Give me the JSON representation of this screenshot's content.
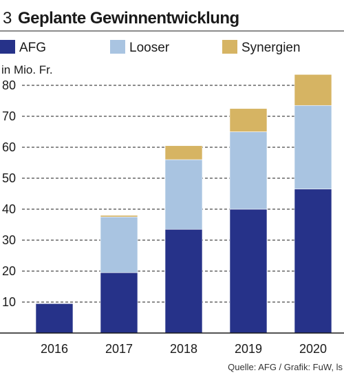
{
  "figure_number": "3",
  "title": "Geplante Gewinnentwicklung",
  "unit_label": "in Mio. Fr.",
  "source": "Quelle: AFG / Grafik: FuW, ls",
  "colors": {
    "AFG": "#263289",
    "Looser": "#a9c4e1",
    "Synergien": "#d6b463",
    "grid": "#1a1a1a"
  },
  "chart_data": {
    "type": "bar",
    "stacked": true,
    "categories": [
      "2016",
      "2017",
      "2018",
      "2019",
      "2020"
    ],
    "series": [
      {
        "name": "AFG",
        "values": [
          9.5,
          19.5,
          33.5,
          40,
          46.5
        ]
      },
      {
        "name": "Looser",
        "values": [
          0,
          18,
          22.5,
          25,
          27
        ]
      },
      {
        "name": "Synergien",
        "values": [
          0,
          0.5,
          4.5,
          7.5,
          10
        ]
      }
    ],
    "ylabel": "in Mio. Fr.",
    "ylim": [
      0,
      85
    ],
    "yticks": [
      10,
      20,
      30,
      40,
      50,
      60,
      70,
      80
    ],
    "grid": "horizontal dashed",
    "legend": "top"
  }
}
